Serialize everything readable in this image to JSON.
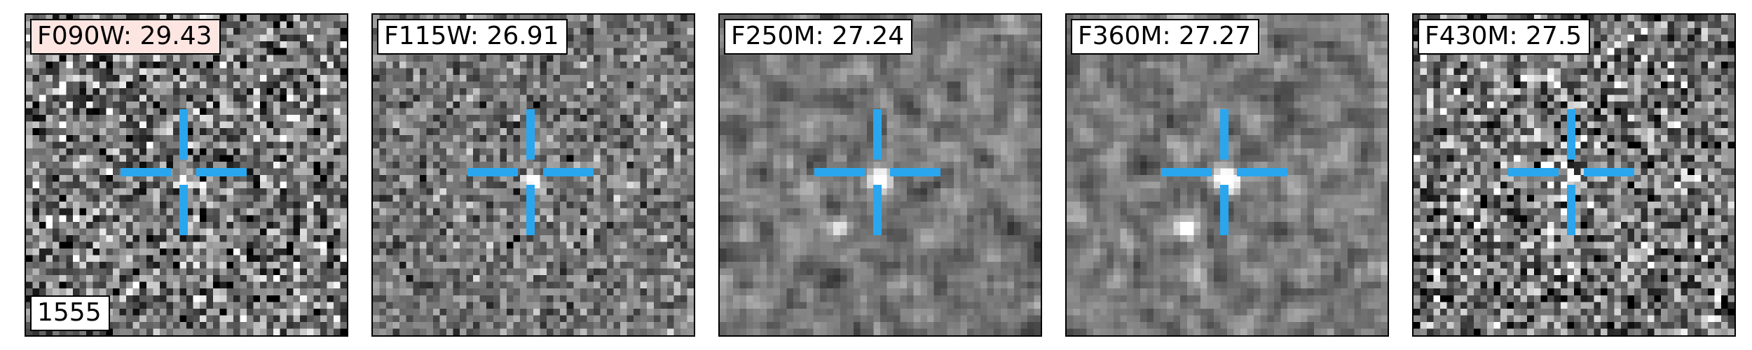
{
  "object_id": "1555",
  "crosshair_color": "#2aa6ee",
  "highlight_color": "#fde6e2",
  "panels": [
    {
      "label": "F090W: 29.43",
      "highlight": true,
      "noise": "high",
      "source": "faint"
    },
    {
      "label": "F115W: 26.91",
      "highlight": false,
      "noise": "fine",
      "source": "point"
    },
    {
      "label": "F250M: 27.24",
      "highlight": false,
      "noise": "smooth",
      "source": "point-with-companion"
    },
    {
      "label": "F360M: 27.27",
      "highlight": false,
      "noise": "smooth",
      "source": "point-with-companion"
    },
    {
      "label": "F430M: 27.5",
      "highlight": false,
      "noise": "high",
      "source": "faint"
    }
  ]
}
